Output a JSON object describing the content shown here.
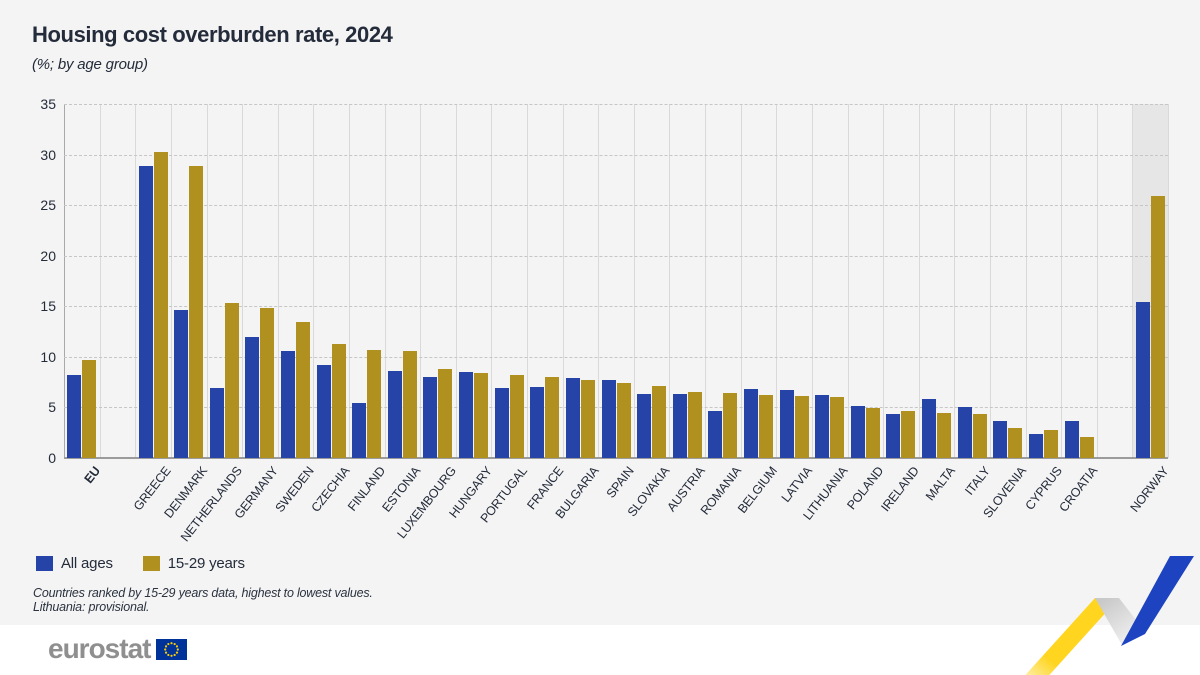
{
  "header": {
    "title": "Housing cost overburden rate, 2024",
    "subtitle": "(%; by age group)"
  },
  "chart_data": {
    "type": "bar",
    "title": "Housing cost overburden rate, 2024",
    "subtitle": "(%; by age group)",
    "ylim": [
      0,
      35
    ],
    "yticks": [
      0,
      5,
      10,
      15,
      20,
      25,
      30,
      35
    ],
    "grid": "horizontal dashed lines every 5, vertical solid column separators",
    "legend_position": "bottom-left",
    "categories": [
      "EU",
      "GREECE",
      "DENMARK",
      "NETHERLANDS",
      "GERMANY",
      "SWEDEN",
      "CZECHIA",
      "FINLAND",
      "ESTONIA",
      "LUXEMBOURG",
      "HUNGARY",
      "PORTUGAL",
      "FRANCE",
      "BULGARIA",
      "SPAIN",
      "SLOVAKIA",
      "AUSTRIA",
      "ROMANIA",
      "BELGIUM",
      "LATVIA",
      "LITHUANIA",
      "POLAND",
      "IRELAND",
      "MALTA",
      "ITALY",
      "SLOVENIA",
      "CYPRUS",
      "CROATIA",
      "NORWAY"
    ],
    "series": [
      {
        "name": "All ages",
        "color": "#2644A7",
        "values": [
          8.2,
          28.9,
          14.6,
          6.9,
          12.0,
          10.6,
          9.2,
          5.4,
          8.6,
          8.0,
          8.5,
          6.9,
          7.0,
          7.9,
          7.7,
          6.3,
          6.3,
          4.7,
          6.8,
          6.7,
          6.2,
          5.1,
          4.4,
          5.8,
          5.0,
          3.7,
          2.4,
          3.7,
          15.4
        ]
      },
      {
        "name": "15-29 years",
        "color": "#B0911F",
        "values": [
          9.7,
          30.3,
          28.9,
          15.3,
          14.8,
          13.5,
          11.3,
          10.7,
          10.6,
          8.8,
          8.4,
          8.2,
          8.0,
          7.7,
          7.4,
          7.1,
          6.5,
          6.4,
          6.2,
          6.1,
          6.0,
          4.9,
          4.7,
          4.5,
          4.4,
          3.0,
          2.8,
          2.1,
          25.9
        ]
      }
    ],
    "gaps_after": [
      "EU",
      "CROATIA"
    ],
    "bold_category": "EU",
    "highlighted_category": "NORWAY",
    "highlight_color": "#e6e6e6"
  },
  "notes": [
    "Countries ranked by 15-29 years data, highest to lowest values.",
    "Lithuania: provisional."
  ],
  "footer": {
    "logo_text": "eurostat",
    "flag_field_color": "#003399",
    "flag_star_color": "#FFCC00"
  },
  "decoration": {
    "ribbon_yellow": "#FFD520",
    "ribbon_gray": "#c9c9c9",
    "ribbon_blue": "#1D43C0"
  }
}
